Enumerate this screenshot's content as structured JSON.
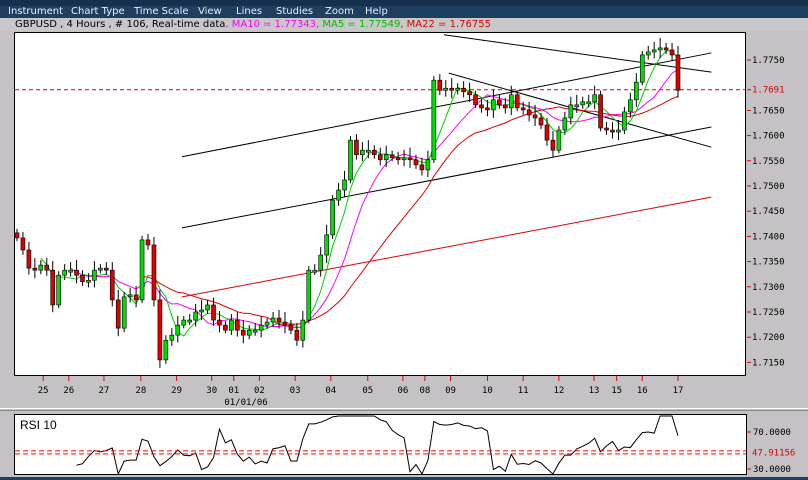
{
  "menu": [
    "Instrument",
    "Chart Type",
    "Time Scale",
    "View",
    "Lines",
    "Studies",
    "Zoom",
    "Help"
  ],
  "info": {
    "symbol_text": "GBPUSD , 4 Hours , # 106, Real-time data",
    "ma10_text": " , MA10 = 1.77343",
    "ma5_text": " , MA5 = 1.77549",
    "ma22_text": " , MA22 = 1.76755"
  },
  "colors": {
    "up": "#00dd00",
    "down": "#dd0000",
    "ma10": "#ff00ff",
    "ma5": "#00cc00",
    "ma22": "#dd0000",
    "price_line": "#dd0000",
    "bg": "#c4c2c4",
    "menu": "#1f3f60"
  },
  "chart_data": {
    "type": "candlestick",
    "symbol": "GBPUSD",
    "timeframe": "4 Hours",
    "bars": 106,
    "ylim": [
      1.711,
      1.7805
    ],
    "y_ticks": [
      "1.7750",
      "1.7650",
      "1.7600",
      "1.7550",
      "1.7500",
      "1.7450",
      "1.7400",
      "1.7350",
      "1.7300",
      "1.7250",
      "1.7200",
      "1.7150"
    ],
    "current_price": "1.7691",
    "closes": [
      1.7397,
      1.7373,
      1.7337,
      1.7333,
      1.7343,
      1.7333,
      1.7264,
      1.7323,
      1.7333,
      1.7333,
      1.7323,
      1.731,
      1.7313,
      1.7333,
      1.7337,
      1.7333,
      1.7274,
      1.7218,
      1.728,
      1.7284,
      1.7274,
      1.7393,
      1.7383,
      1.7274,
      1.7155,
      1.7194,
      1.7204,
      1.7224,
      1.7234,
      1.7234,
      1.725,
      1.7254,
      1.7264,
      1.7234,
      1.7224,
      1.7214,
      1.7234,
      1.7214,
      1.7204,
      1.7214,
      1.7214,
      1.7224,
      1.723,
      1.7238,
      1.723,
      1.7224,
      1.7214,
      1.7194,
      1.7234,
      1.7333,
      1.7333,
      1.7363,
      1.7403,
      1.7472,
      1.7492,
      1.7512,
      1.7591,
      1.7562,
      1.7571,
      1.7571,
      1.7562,
      1.7552,
      1.7562,
      1.7556,
      1.7552,
      1.7556,
      1.7552,
      1.7542,
      1.7532,
      1.7552,
      1.771,
      1.769,
      1.7694,
      1.769,
      1.7694,
      1.7687,
      1.7681,
      1.7661,
      1.7655,
      1.7651,
      1.7671,
      1.7661,
      1.7655,
      1.7681,
      1.7655,
      1.7651,
      1.7641,
      1.7635,
      1.7621,
      1.7591,
      1.7571,
      1.7611,
      1.7635,
      1.7661,
      1.7661,
      1.7667,
      1.7667,
      1.7681,
      1.7615,
      1.7611,
      1.7607,
      1.7611,
      1.7647,
      1.7671,
      1.7706,
      1.776,
      1.7766,
      1.777,
      1.7774,
      1.777,
      1.776,
      1.769
    ],
    "moving_averages": [
      {
        "name": "MA10",
        "period": 10
      },
      {
        "name": "MA5",
        "period": 5
      },
      {
        "name": "MA22",
        "period": 22
      }
    ],
    "trendlines": [
      {
        "color": "#000000",
        "from": [
          27.7,
          1.7558
        ],
        "to": [
          116.6,
          1.7764
        ]
      },
      {
        "color": "#000000",
        "from": [
          27.7,
          1.7417
        ],
        "to": [
          116.6,
          1.7617
        ]
      },
      {
        "color": "#000000",
        "from": [
          71.7,
          1.78
        ],
        "to": [
          116.6,
          1.7726
        ]
      },
      {
        "color": "#000000",
        "from": [
          72.5,
          1.7724
        ],
        "to": [
          116.6,
          1.7577
        ]
      },
      {
        "color": "#dd0000",
        "from": [
          27.7,
          1.728
        ],
        "to": [
          116.6,
          1.7478
        ]
      }
    ],
    "x_ticks": [
      {
        "label": "25",
        "bar": 4.4
      },
      {
        "label": "26",
        "bar": 8.7
      },
      {
        "label": "27",
        "bar": 14.6
      },
      {
        "label": "28",
        "bar": 20.8
      },
      {
        "label": "29",
        "bar": 26.8
      },
      {
        "label": "30",
        "bar": 32.7
      },
      {
        "label": "01",
        "bar": 36.4
      },
      {
        "label": "02",
        "bar": 40.7
      },
      {
        "label": "03",
        "bar": 46.7
      },
      {
        "label": "04",
        "bar": 52.7
      },
      {
        "label": "05",
        "bar": 58.9
      },
      {
        "label": "06",
        "bar": 64.8
      },
      {
        "label": "08",
        "bar": 68.5
      },
      {
        "label": "09",
        "bar": 72.8
      },
      {
        "label": "10",
        "bar": 79.0
      },
      {
        "label": "11",
        "bar": 85.0
      },
      {
        "label": "12",
        "bar": 91.0
      },
      {
        "label": "13",
        "bar": 96.9
      },
      {
        "label": "15",
        "bar": 100.7
      },
      {
        "label": "16",
        "bar": 105
      },
      {
        "label": "17",
        "bar": 111
      }
    ],
    "x_sublabel": "01/01/06",
    "rsi": {
      "title": "RSI 10",
      "period": 10,
      "ylim": [
        23,
        88
      ],
      "levels": [
        "70.0000",
        "30.0000"
      ],
      "current": "47.91156"
    }
  }
}
